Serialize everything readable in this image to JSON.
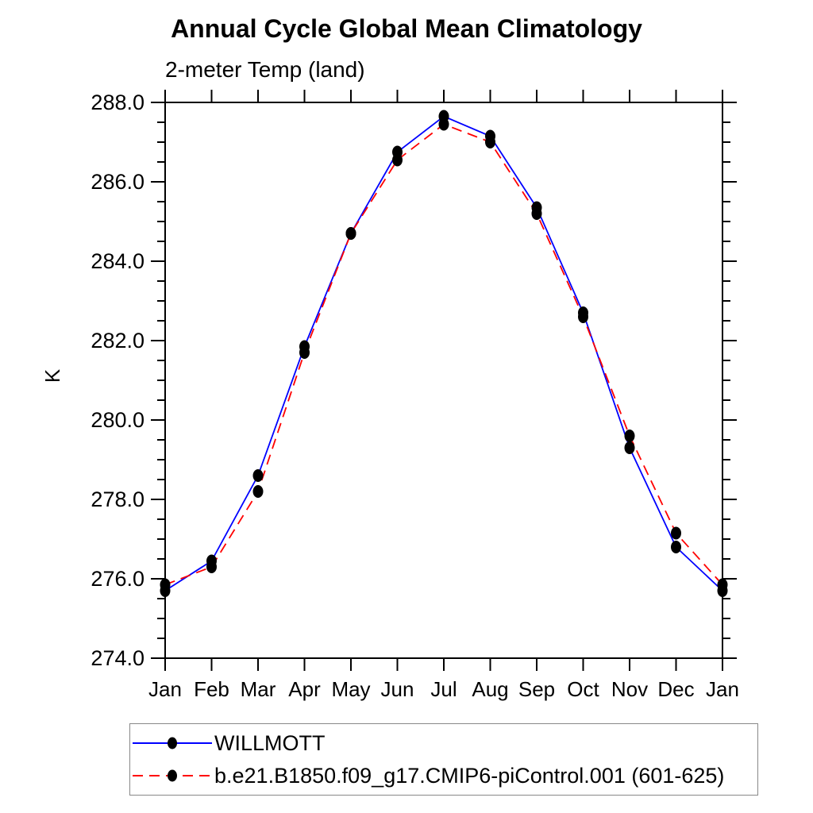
{
  "title": "Annual Cycle Global Mean Climatology",
  "subtitle": "2-meter Temp (land)",
  "y_axis_title": "K",
  "colors": {
    "background": "#ffffff",
    "axis": "#000000",
    "marker": "#000000",
    "series1": "#0000ff",
    "series2": "#ff0000",
    "legend_border": "#888888"
  },
  "legend": {
    "entries": [
      {
        "label": "WILLMOTT",
        "color": "#0000ff",
        "style": "solid",
        "marker": "black-dot"
      },
      {
        "label": "b.e21.B1850.f09_g17.CMIP6-piControl.001 (601-625)",
        "color": "#ff0000",
        "style": "dashed",
        "marker": "black-dot"
      }
    ]
  },
  "chart_data": {
    "type": "line",
    "title": "Annual Cycle Global Mean Climatology",
    "subtitle": "2-meter Temp (land)",
    "xlabel": "",
    "ylabel": "K",
    "x_categories": [
      "Jan",
      "Feb",
      "Mar",
      "Apr",
      "May",
      "Jun",
      "Jul",
      "Aug",
      "Sep",
      "Oct",
      "Nov",
      "Dec",
      "Jan"
    ],
    "ylim": [
      274.0,
      288.0
    ],
    "ytick_major_step": 2.0,
    "ytick_minor_step": 0.5,
    "ytick_labels": [
      "274.0",
      "276.0",
      "278.0",
      "280.0",
      "282.0",
      "284.0",
      "286.0",
      "288.0"
    ],
    "grid": false,
    "legend_position": "bottom-left-box",
    "marker": "filled-black-circle",
    "series": [
      {
        "name": "WILLMOTT",
        "color": "#0000ff",
        "line_style": "solid",
        "values": [
          275.7,
          276.45,
          278.6,
          281.85,
          284.7,
          286.75,
          287.65,
          287.15,
          285.35,
          282.7,
          279.3,
          276.8,
          275.7
        ]
      },
      {
        "name": "b.e21.B1850.f09_g17.CMIP6-piControl.001 (601-625)",
        "color": "#ff0000",
        "line_style": "dashed",
        "values": [
          275.85,
          276.3,
          278.2,
          281.7,
          284.7,
          286.55,
          287.45,
          287.0,
          285.2,
          282.6,
          279.6,
          277.15,
          275.85
        ]
      }
    ]
  }
}
